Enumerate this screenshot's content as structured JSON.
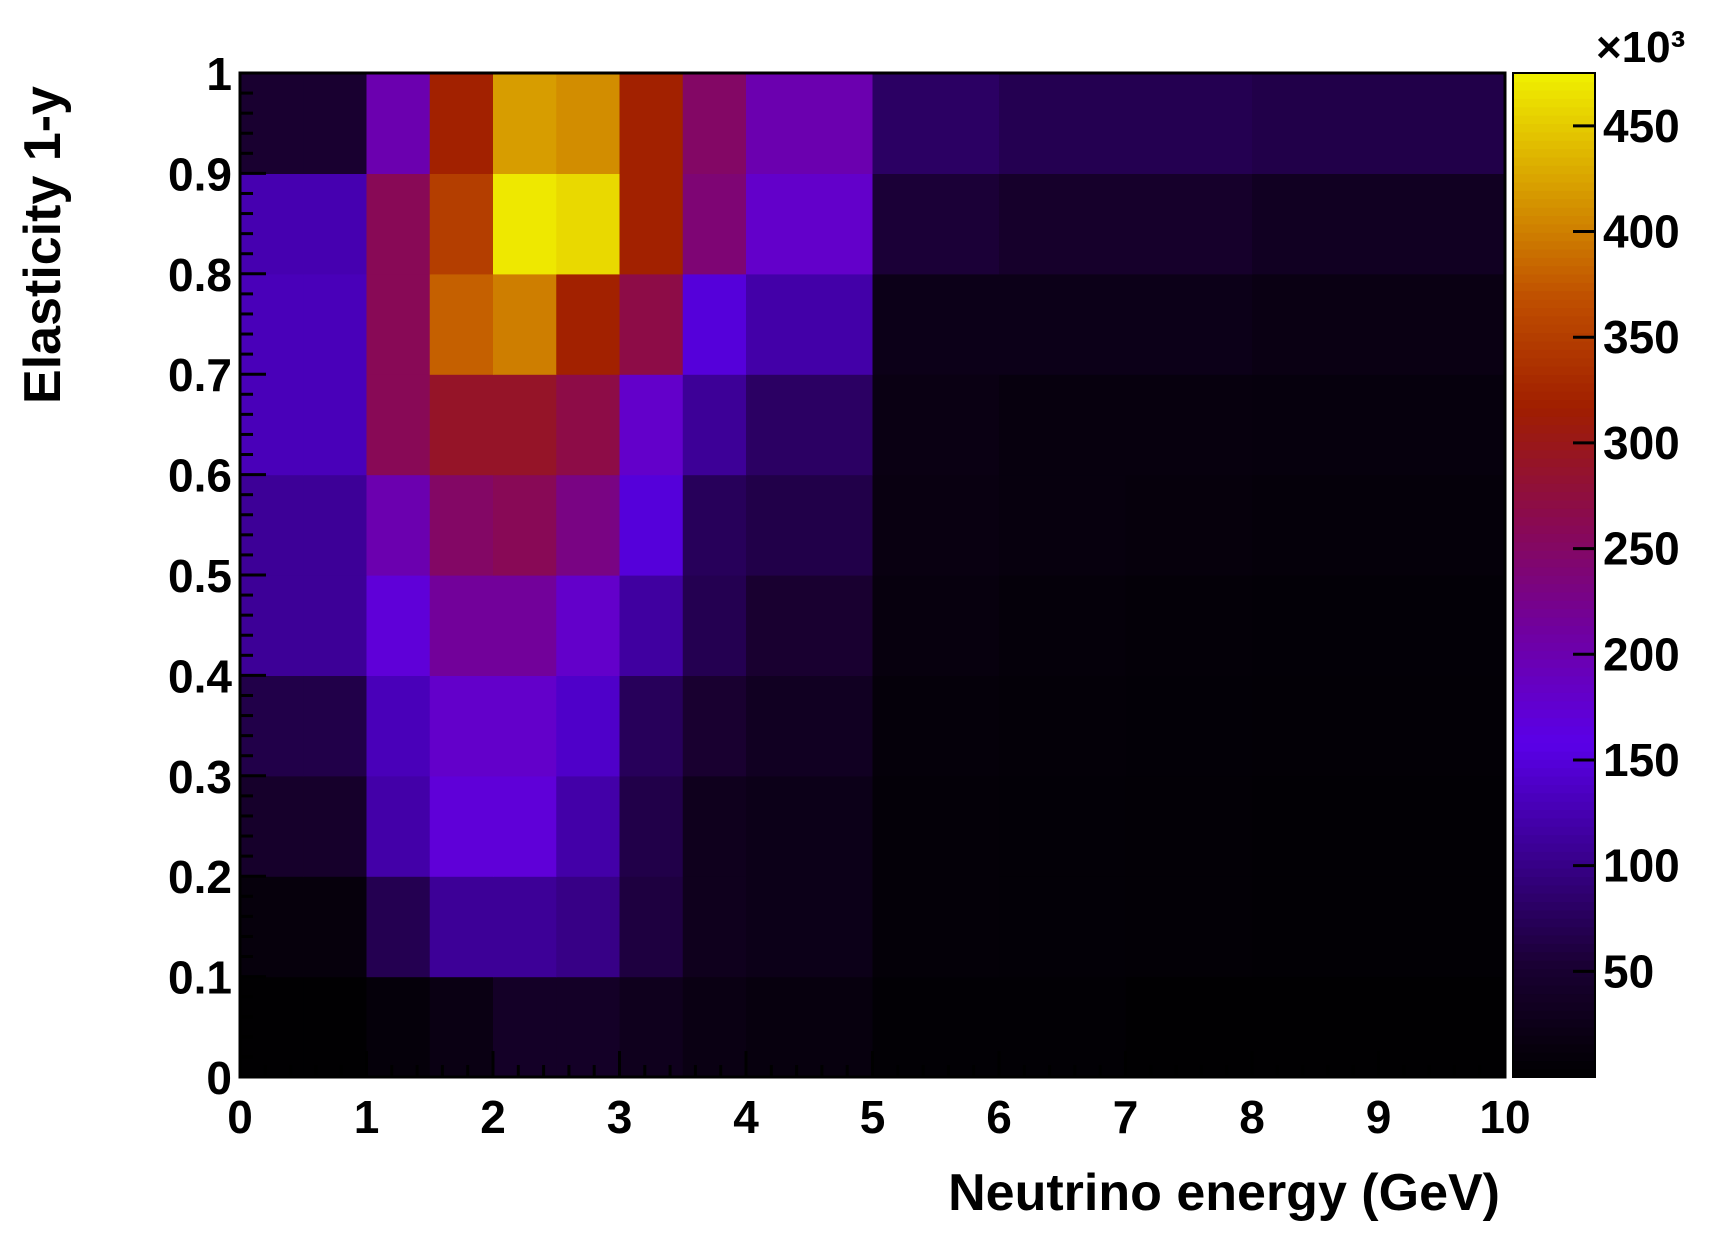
{
  "chart_data": {
    "type": "heatmap",
    "title": "",
    "xlabel": "Neutrino energy (GeV)",
    "ylabel": "Elasticity 1-y",
    "xlim": [
      0,
      10
    ],
    "ylim": [
      0,
      1
    ],
    "x_edges": [
      0,
      0.5,
      1,
      1.5,
      2,
      2.5,
      3,
      3.5,
      4,
      5,
      6,
      7,
      8,
      9,
      10
    ],
    "y_edges": [
      0,
      0.1,
      0.2,
      0.3,
      0.4,
      0.5,
      0.6,
      0.7,
      0.8,
      0.9,
      1.0
    ],
    "x_tick_labels": [
      "0",
      "1",
      "2",
      "3",
      "4",
      "5",
      "6",
      "7",
      "8",
      "9",
      "10"
    ],
    "y_tick_labels": [
      "0",
      "0.1",
      "0.2",
      "0.3",
      "0.4",
      "0.5",
      "0.6",
      "0.7",
      "0.8",
      "0.9",
      "1"
    ],
    "z_unit_label": "×10³",
    "z_range": [
      0,
      475
    ],
    "z_tick_labels": [
      "50",
      "100",
      "150",
      "200",
      "250",
      "300",
      "350",
      "400",
      "450"
    ],
    "colormap": [
      "#000000",
      "#1a0033",
      "#3a0090",
      "#5a00e8",
      "#7000a0",
      "#8a0a50",
      "#a01e00",
      "#c05000",
      "#d8a000",
      "#f0f000"
    ],
    "z_values": [
      [
        2,
        2,
        10,
        20,
        40,
        40,
        30,
        20,
        15,
        5,
        5,
        2,
        2,
        2
      ],
      [
        12,
        12,
        70,
        110,
        110,
        100,
        60,
        30,
        25,
        8,
        7,
        6,
        5,
        5
      ],
      [
        45,
        45,
        120,
        170,
        170,
        120,
        65,
        30,
        25,
        8,
        7,
        6,
        5,
        5
      ],
      [
        65,
        65,
        130,
        180,
        180,
        140,
        75,
        50,
        35,
        10,
        8,
        7,
        6,
        6
      ],
      [
        110,
        110,
        170,
        215,
        215,
        180,
        115,
        70,
        50,
        15,
        10,
        8,
        7,
        7
      ],
      [
        110,
        110,
        200,
        250,
        260,
        230,
        150,
        75,
        65,
        18,
        14,
        12,
        10,
        10
      ],
      [
        130,
        130,
        260,
        290,
        290,
        270,
        180,
        110,
        80,
        20,
        15,
        15,
        13,
        13
      ],
      [
        130,
        130,
        260,
        380,
        400,
        320,
        270,
        150,
        120,
        25,
        25,
        25,
        20,
        20
      ],
      [
        125,
        125,
        260,
        350,
        470,
        460,
        320,
        240,
        180,
        55,
        45,
        45,
        35,
        35
      ],
      [
        50,
        50,
        200,
        320,
        420,
        410,
        320,
        250,
        200,
        80,
        70,
        70,
        65,
        65
      ]
    ]
  }
}
